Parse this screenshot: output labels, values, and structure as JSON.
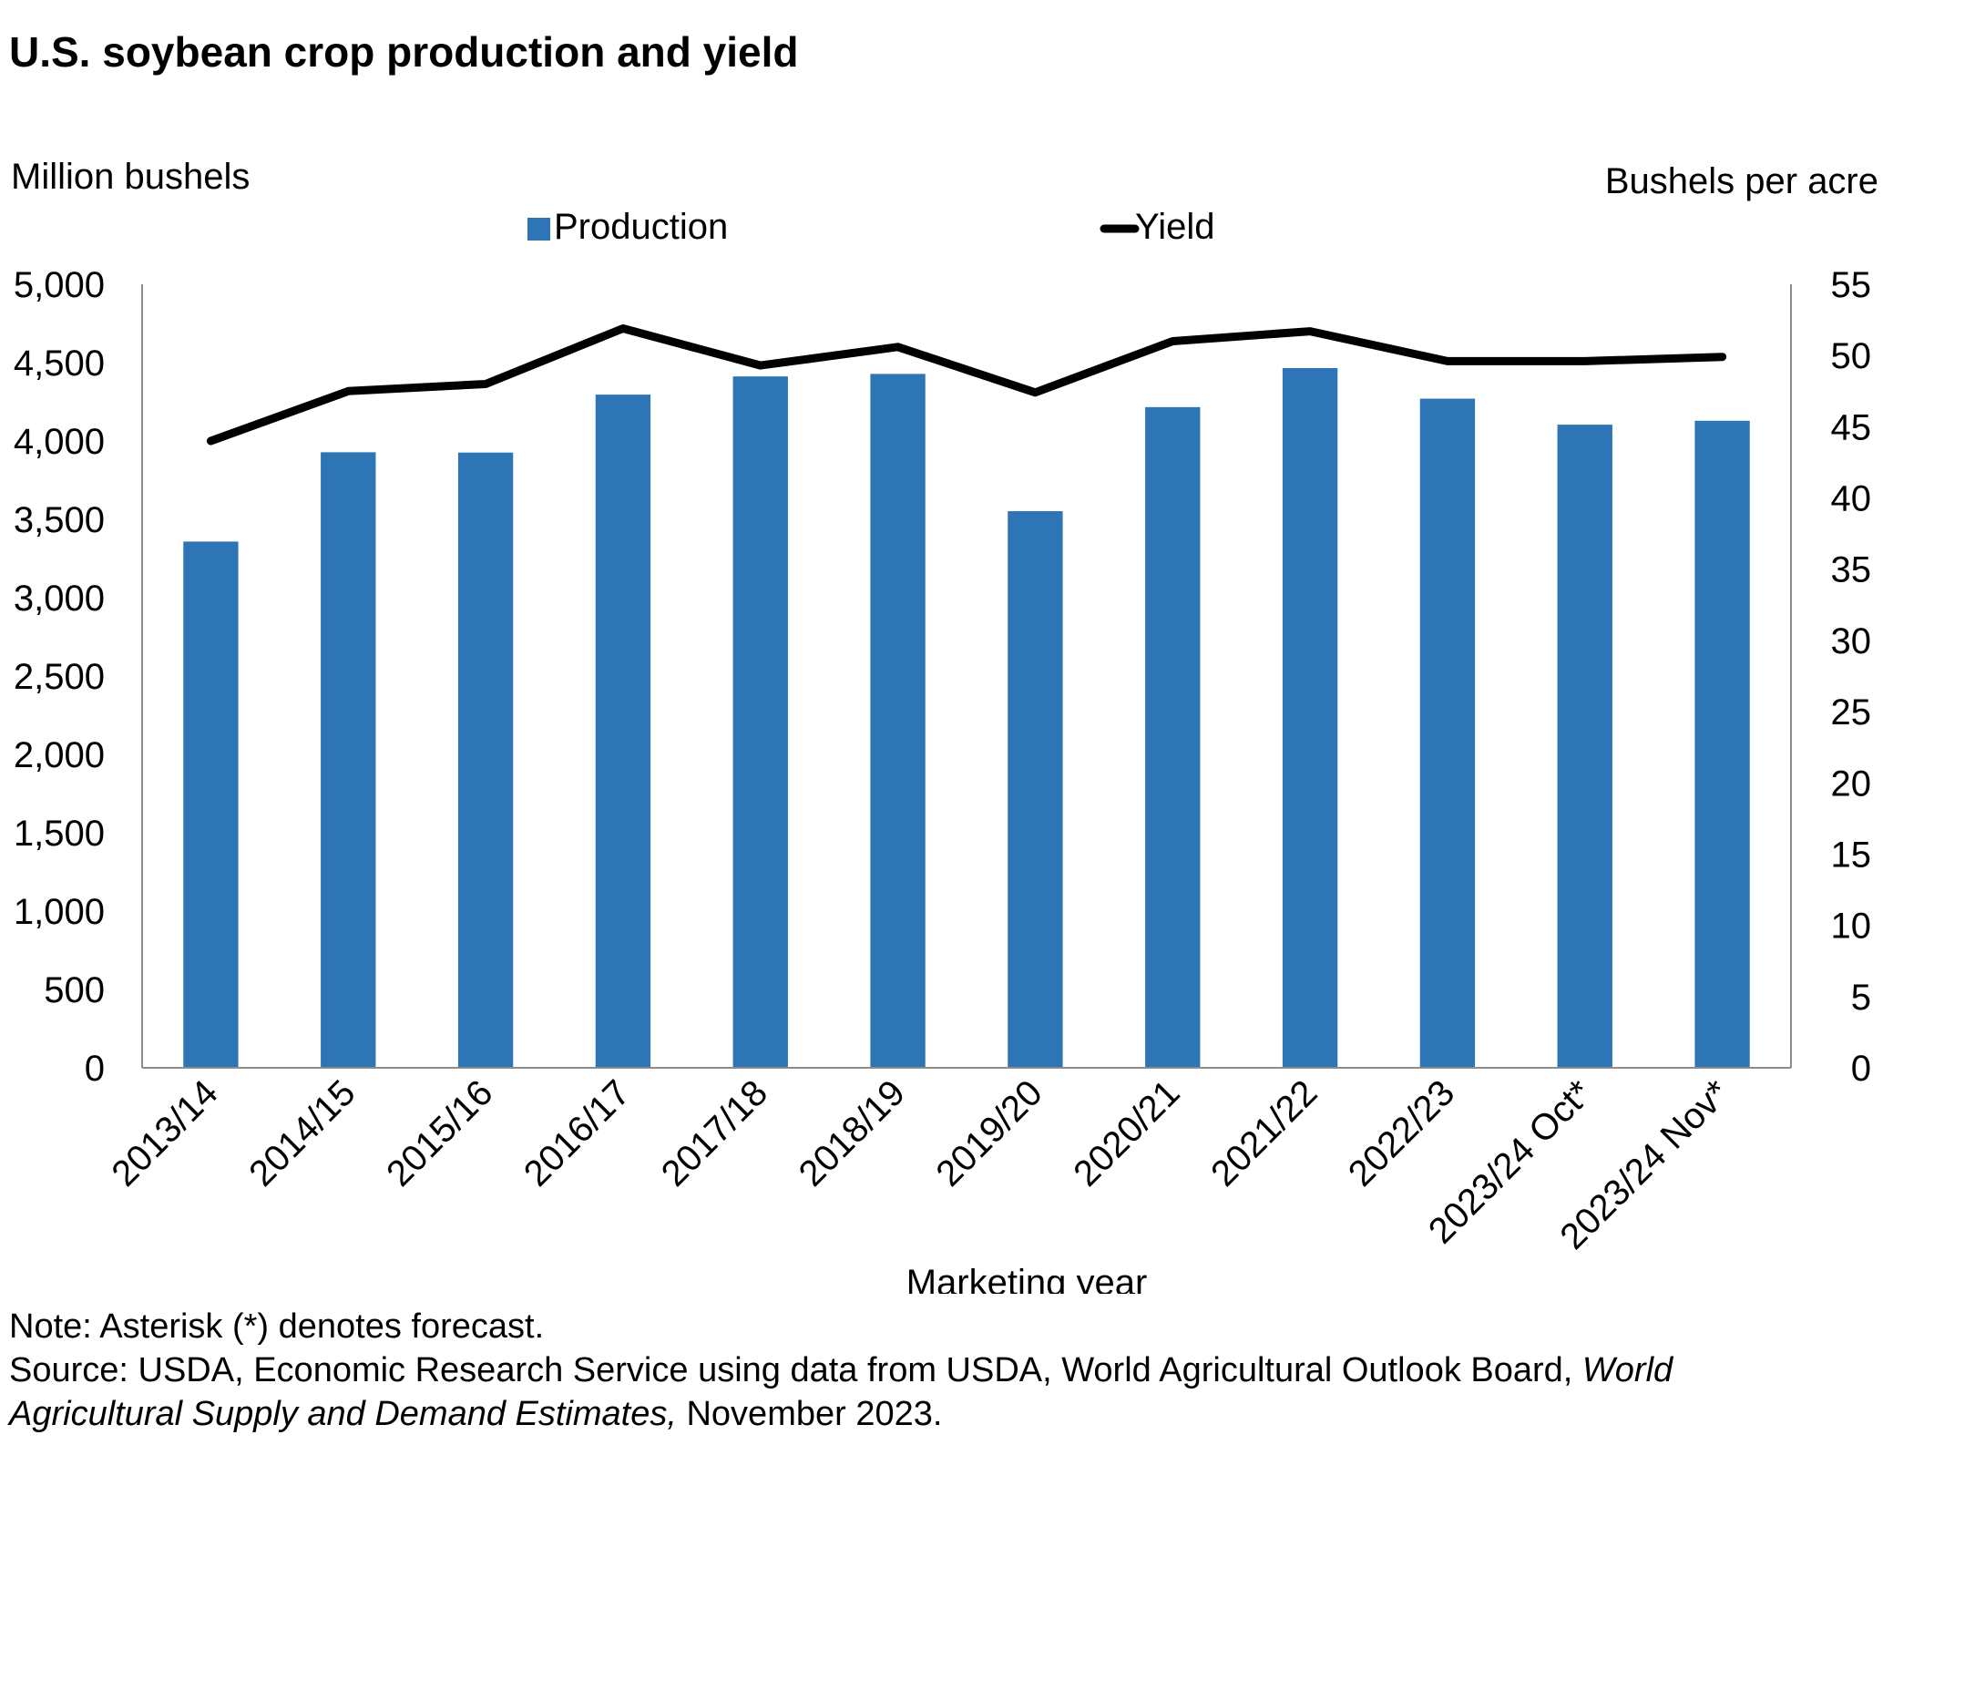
{
  "title": "U.S. soybean crop production and yield",
  "notes": {
    "note": "Note: Asterisk (*) denotes forecast.",
    "source_prefix": "Source: USDA, Economic Research Service using data from USDA, World Agricultural Outlook Board,",
    "source_italic_1": "World",
    "source_italic_2": "Agricultural Supply and Demand Estimates,",
    "source_suffix": "November 2023."
  },
  "chart_data": {
    "type": "bar",
    "title": "U.S. soybean crop production and yield",
    "xlabel": "Marketing year",
    "ylabel_left": "Million bushels",
    "ylabel_right": "Bushels per acre",
    "ylim_left": [
      0,
      5000
    ],
    "ylim_right": [
      0,
      55
    ],
    "yticks_left": [
      "0",
      "500",
      "1,000",
      "1,500",
      "2,000",
      "2,500",
      "3,000",
      "3,500",
      "4,000",
      "4,500",
      "5,000"
    ],
    "yticks_right": [
      "0",
      "5",
      "10",
      "15",
      "20",
      "25",
      "30",
      "35",
      "40",
      "45",
      "50",
      "55"
    ],
    "grid": false,
    "legend_position": "top",
    "categories": [
      "2013/14",
      "2014/15",
      "2015/16",
      "2016/17",
      "2017/18",
      "2018/19",
      "2019/20",
      "2020/21",
      "2021/22",
      "2022/23",
      "2023/24 Oct*",
      "2023/24 Nov*"
    ],
    "series": [
      {
        "name": "Production",
        "type": "bar",
        "axis": "left",
        "color": "#2e75b6",
        "values": [
          3358,
          3928,
          3926,
          4296,
          4412,
          4428,
          3552,
          4216,
          4465,
          4270,
          4104,
          4129
        ]
      },
      {
        "name": "Yield",
        "type": "line",
        "axis": "right",
        "color": "#000000",
        "values": [
          44.0,
          47.5,
          48.0,
          51.9,
          49.3,
          50.6,
          47.4,
          51.0,
          51.7,
          49.6,
          49.6,
          49.9
        ]
      }
    ]
  }
}
